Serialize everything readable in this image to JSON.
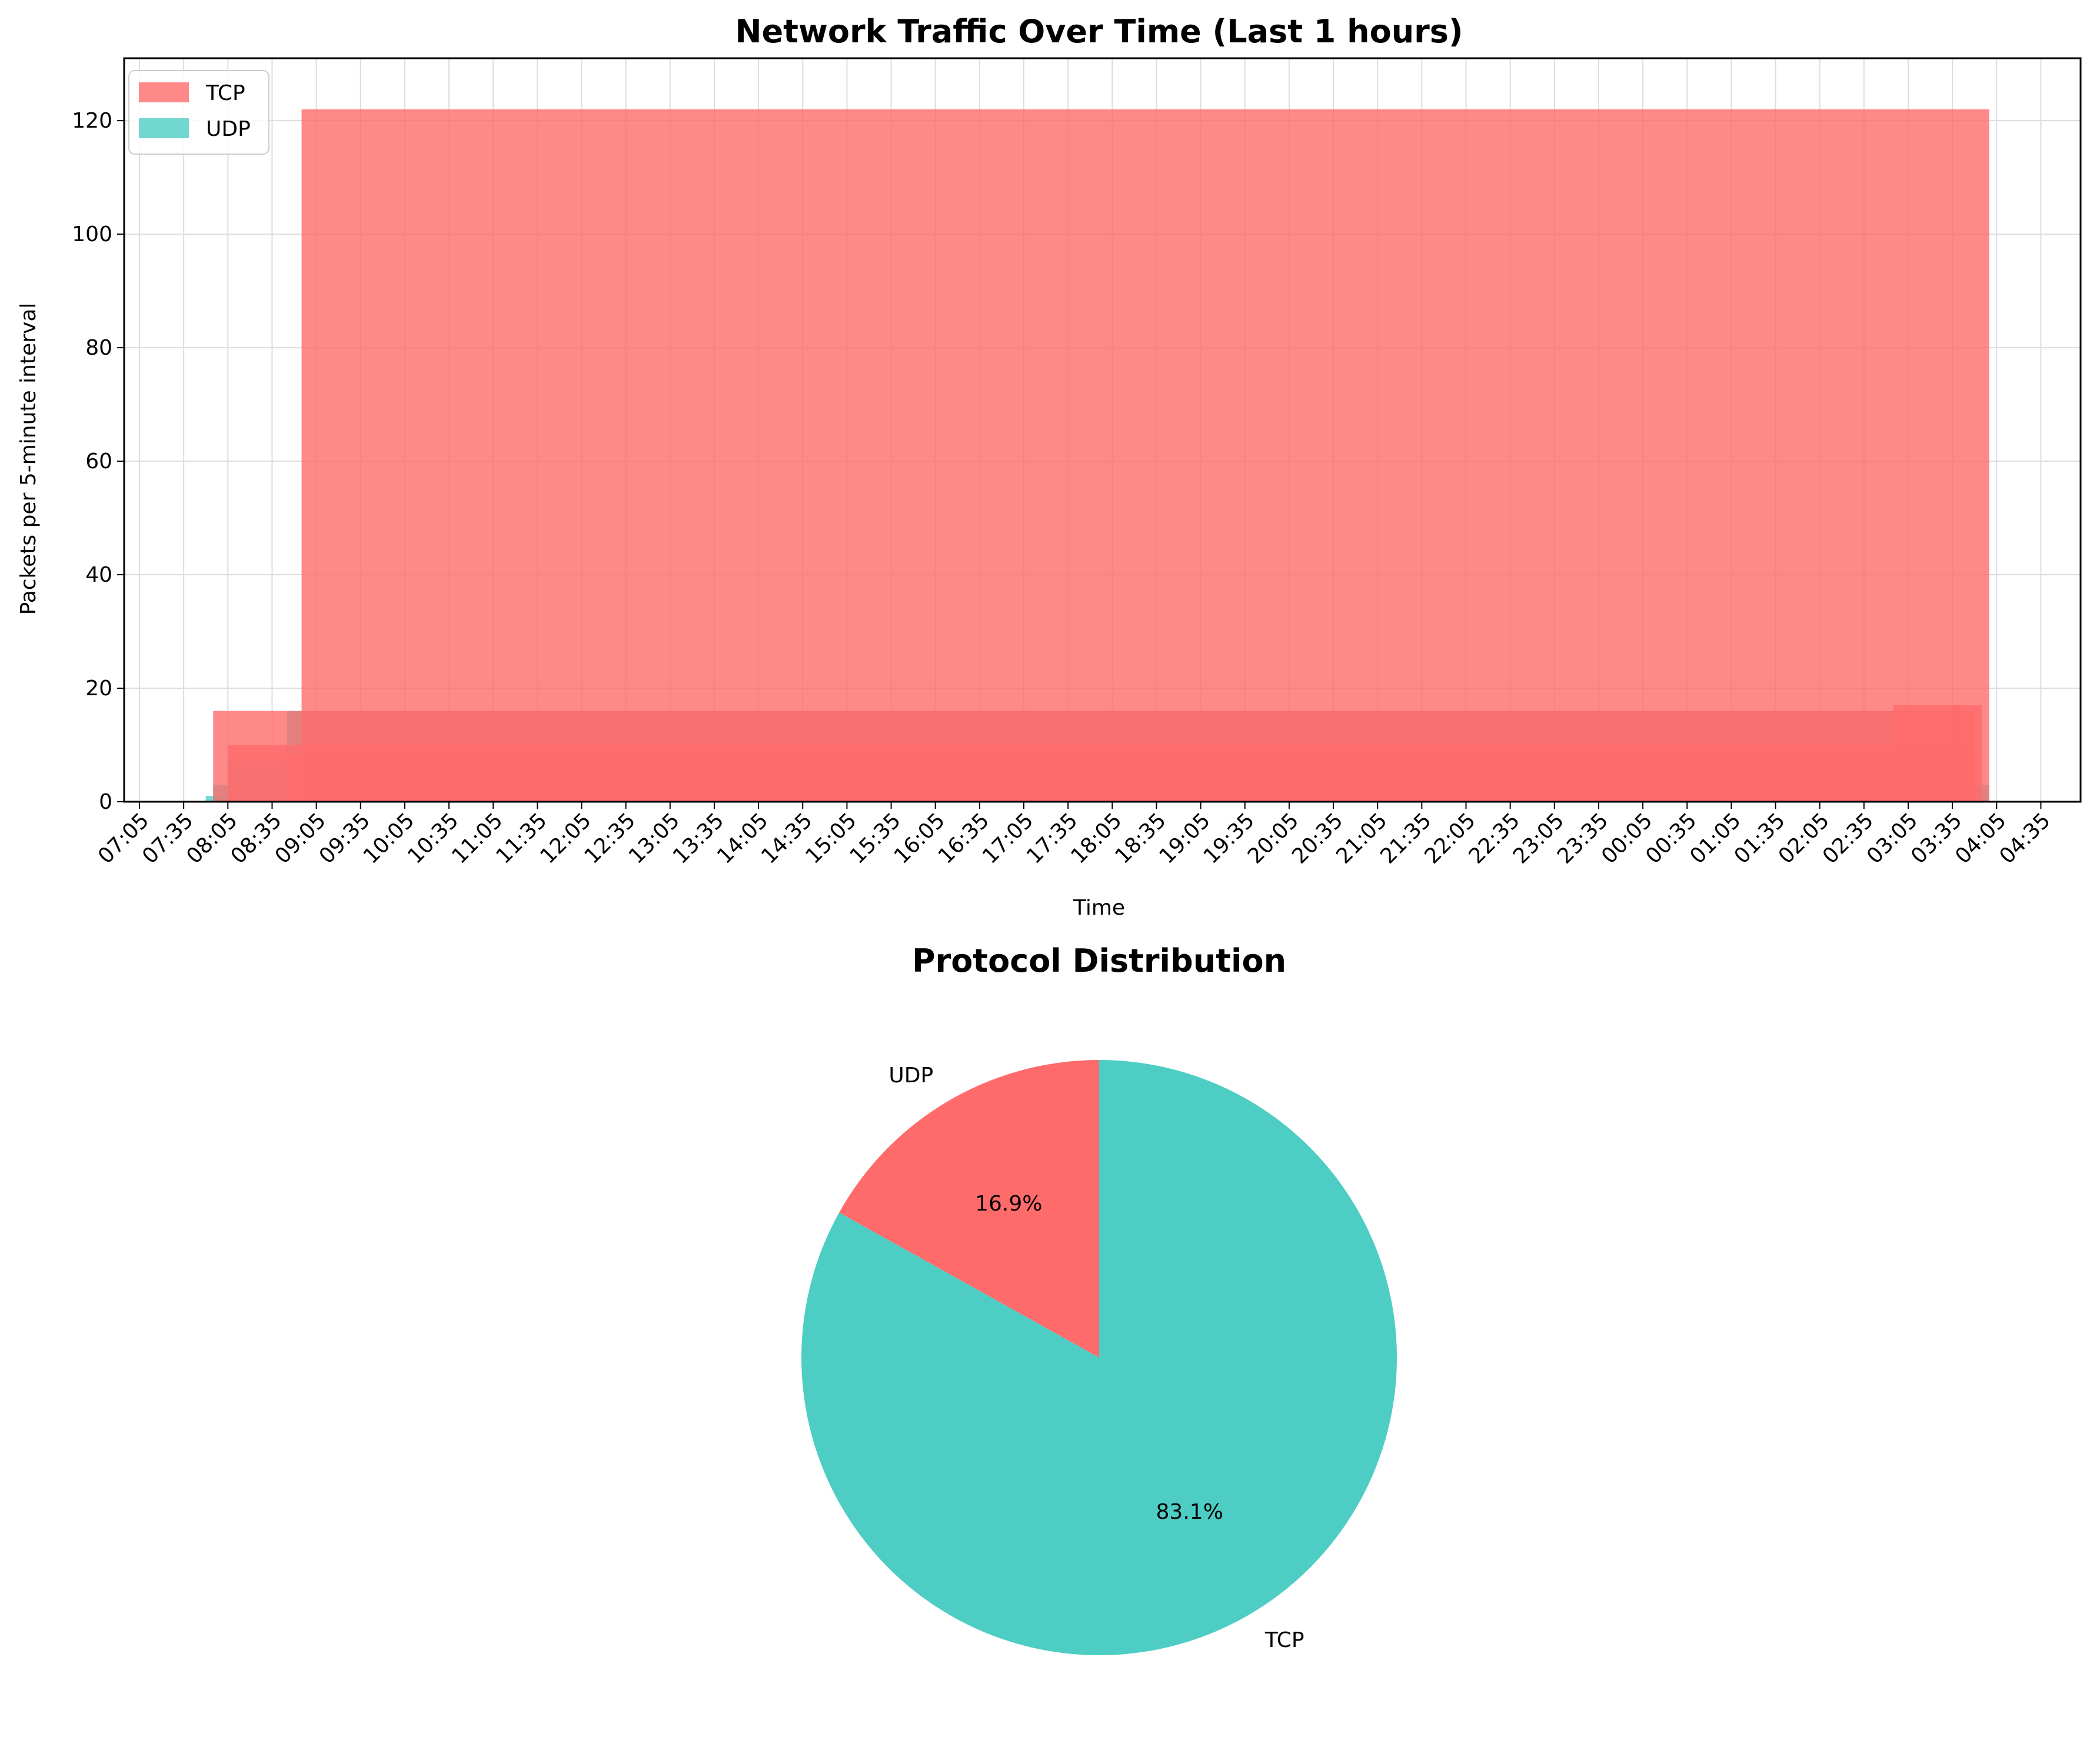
{
  "colors": {
    "tcp_bar": "#FF6B6B",
    "udp_bar": "#4ECDC4",
    "grid": "#dddddd",
    "axis": "#000000"
  },
  "chart_data": [
    {
      "type": "bar",
      "title": "Network Traffic Over Time (Last 1 hours)",
      "xlabel": "Time",
      "ylabel": "Packets per 5-minute interval",
      "ylim": [
        0,
        131
      ],
      "yticks": [
        0,
        20,
        40,
        60,
        80,
        100,
        120
      ],
      "grid": true,
      "legend_position": "top-left",
      "xticks": [
        "07:05",
        "07:35",
        "08:05",
        "08:35",
        "09:05",
        "09:35",
        "10:05",
        "10:35",
        "11:05",
        "11:35",
        "12:05",
        "12:35",
        "13:05",
        "13:35",
        "14:05",
        "14:35",
        "15:05",
        "15:35",
        "16:05",
        "16:35",
        "17:05",
        "17:35",
        "18:05",
        "18:35",
        "19:05",
        "19:35",
        "20:05",
        "20:35",
        "21:05",
        "21:35",
        "22:05",
        "22:35",
        "23:05",
        "23:35",
        "00:05",
        "00:35",
        "01:05",
        "01:35",
        "02:05",
        "02:35",
        "03:05",
        "03:35",
        "04:05",
        "04:35"
      ],
      "series": [
        {
          "name": "TCP",
          "bars": [
            {
              "start": "07:55",
              "end": "03:50",
              "value": 16
            },
            {
              "start": "08:05",
              "end": "03:45",
              "value": 10
            },
            {
              "start": "08:45",
              "end": "03:50",
              "value": 8
            },
            {
              "start": "08:55",
              "end": "04:00",
              "value": 122
            },
            {
              "start": "02:55",
              "end": "03:40",
              "value": 17
            },
            {
              "start": "03:35",
              "end": "03:55",
              "value": 17
            }
          ]
        },
        {
          "name": "UDP",
          "bars": [
            {
              "start": "07:50",
              "end": "02:55",
              "value": 1
            },
            {
              "start": "07:55",
              "end": "03:10",
              "value": 3
            },
            {
              "start": "08:05",
              "end": "03:30",
              "value": 7
            },
            {
              "start": "08:40",
              "end": "03:45",
              "value": 6
            },
            {
              "start": "08:45",
              "end": "03:50",
              "value": 16
            },
            {
              "start": "08:55",
              "end": "04:00",
              "value": 3
            }
          ]
        }
      ]
    },
    {
      "type": "pie",
      "title": "Protocol Distribution",
      "slices": [
        {
          "label": "UDP",
          "value": 16.9,
          "pct_label": "16.9%",
          "color": "#FF6B6B"
        },
        {
          "label": "TCP",
          "value": 83.1,
          "pct_label": "83.1%",
          "color": "#4ECDC4"
        }
      ]
    }
  ]
}
